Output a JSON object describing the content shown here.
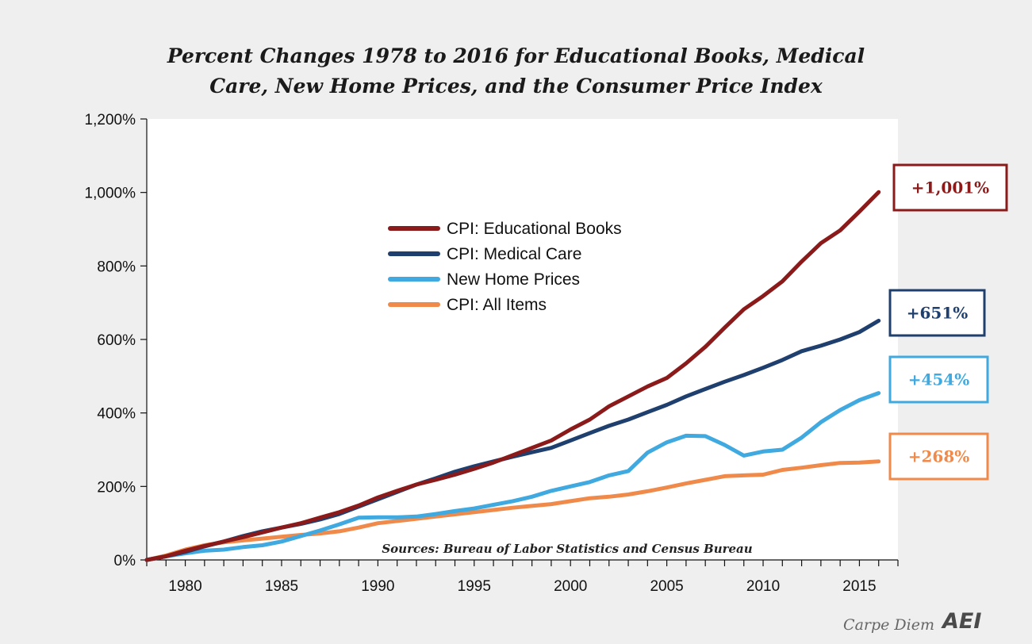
{
  "chart_data": {
    "type": "line",
    "title_lines": [
      "Percent Changes 1978 to 2016 for Educational Books, Medical",
      "Care, New Home Prices, and the Consumer Price Index"
    ],
    "xlabel": "",
    "ylabel": "",
    "xlim": [
      1978,
      2017
    ],
    "ylim": [
      0,
      1200
    ],
    "x_ticks": [
      1980,
      1985,
      1990,
      1995,
      2000,
      2005,
      2010,
      2015
    ],
    "y_ticks": [
      0,
      200,
      400,
      600,
      800,
      1000,
      1200
    ],
    "y_tick_labels": [
      "0%",
      "200%",
      "400%",
      "600%",
      "800%",
      "1,000%",
      "1,200%"
    ],
    "grid": false,
    "legend_position": "upper-center",
    "x": [
      1978,
      1979,
      1980,
      1981,
      1982,
      1983,
      1984,
      1985,
      1986,
      1987,
      1988,
      1989,
      1990,
      1991,
      1992,
      1993,
      1994,
      1995,
      1996,
      1997,
      1998,
      1999,
      2000,
      2001,
      2002,
      2003,
      2004,
      2005,
      2006,
      2007,
      2008,
      2009,
      2010,
      2011,
      2012,
      2013,
      2014,
      2015,
      2016
    ],
    "series": [
      {
        "name": "CPI: Educational Books",
        "color": "#8b1a1a",
        "end_label": "+1,001%",
        "values": [
          0,
          10,
          25,
          38,
          50,
          62,
          75,
          88,
          100,
          115,
          130,
          148,
          170,
          188,
          205,
          218,
          232,
          248,
          265,
          285,
          305,
          325,
          355,
          382,
          418,
          445,
          472,
          495,
          535,
          580,
          632,
          682,
          718,
          758,
          812,
          862,
          897,
          948,
          1001
        ]
      },
      {
        "name": "CPI: Medical Care",
        "color": "#1f3f6e",
        "end_label": "+651%",
        "values": [
          0,
          10,
          22,
          37,
          50,
          65,
          78,
          88,
          98,
          110,
          125,
          145,
          165,
          185,
          205,
          222,
          240,
          255,
          268,
          281,
          293,
          305,
          325,
          345,
          365,
          382,
          402,
          422,
          445,
          465,
          485,
          503,
          523,
          544,
          568,
          583,
          600,
          620,
          651
        ]
      },
      {
        "name": "New Home Prices",
        "color": "#3fa9e0",
        "end_label": "+454%",
        "values": [
          0,
          10,
          18,
          25,
          28,
          35,
          40,
          50,
          65,
          80,
          97,
          115,
          116,
          116,
          118,
          125,
          133,
          140,
          150,
          160,
          172,
          188,
          200,
          212,
          230,
          242,
          292,
          320,
          338,
          337,
          313,
          284,
          295,
          300,
          333,
          375,
          408,
          435,
          454
        ]
      },
      {
        "name": "CPI: All Items",
        "color": "#f08a4b",
        "end_label": "+268%",
        "values": [
          0,
          12,
          28,
          40,
          48,
          53,
          58,
          63,
          68,
          72,
          78,
          88,
          100,
          106,
          112,
          118,
          124,
          130,
          136,
          142,
          147,
          152,
          160,
          168,
          172,
          178,
          187,
          197,
          208,
          218,
          228,
          230,
          232,
          245,
          251,
          258,
          264,
          265,
          268
        ]
      }
    ],
    "annotation": "Sources: Bureau of Labor Statistics and Census Bureau"
  },
  "brand": {
    "text": "Carpe Diem",
    "logo": "AEI"
  }
}
